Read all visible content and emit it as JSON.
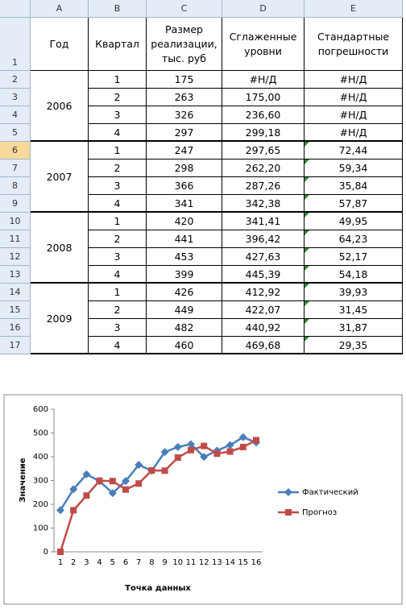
{
  "sheet": {
    "columns": [
      "A",
      "B",
      "C",
      "D",
      "E"
    ],
    "row_numbers": [
      1,
      2,
      3,
      4,
      5,
      6,
      7,
      8,
      9,
      10,
      11,
      12,
      13,
      14,
      15,
      16,
      17
    ],
    "header": [
      "Год",
      "Квартал",
      "Размер реализации, тыс. руб",
      "Сглаженные уровни",
      "Стандартные погрешности"
    ],
    "years": [
      "2006",
      "2007",
      "2008",
      "2009"
    ],
    "rows": [
      [
        "1",
        "175",
        "#Н/Д",
        "#Н/Д"
      ],
      [
        "2",
        "263",
        "175,00",
        "#Н/Д"
      ],
      [
        "3",
        "326",
        "236,60",
        "#Н/Д"
      ],
      [
        "4",
        "297",
        "299,18",
        "#Н/Д"
      ],
      [
        "1",
        "247",
        "297,65",
        "72,44"
      ],
      [
        "2",
        "298",
        "262,20",
        "59,34"
      ],
      [
        "3",
        "366",
        "287,26",
        "35,84"
      ],
      [
        "4",
        "341",
        "342,38",
        "57,87"
      ],
      [
        "1",
        "420",
        "341,41",
        "49,95"
      ],
      [
        "2",
        "441",
        "396,42",
        "64,23"
      ],
      [
        "3",
        "453",
        "427,63",
        "52,17"
      ],
      [
        "4",
        "399",
        "445,39",
        "54,18"
      ],
      [
        "1",
        "426",
        "412,92",
        "39,93"
      ],
      [
        "2",
        "449",
        "422,07",
        "31,45"
      ],
      [
        "3",
        "482",
        "440,92",
        "31,87"
      ],
      [
        "4",
        "460",
        "469,68",
        "29,35"
      ]
    ]
  },
  "chart_data": {
    "type": "line",
    "x_label": "Точка данных",
    "y_label": "Значение",
    "categories": [
      1,
      2,
      3,
      4,
      5,
      6,
      7,
      8,
      9,
      10,
      11,
      12,
      13,
      14,
      15,
      16
    ],
    "series": [
      {
        "name": "Фактический",
        "color": "#4a7ebb",
        "marker": "diamond",
        "values": [
          175,
          263,
          326,
          297,
          247,
          298,
          366,
          341,
          420,
          441,
          453,
          399,
          426,
          449,
          482,
          460
        ]
      },
      {
        "name": "Прогноз",
        "color": "#be4b48",
        "marker": "square",
        "values": [
          0,
          175,
          236.6,
          299.18,
          297.65,
          262.2,
          287.26,
          342.38,
          341.41,
          396.42,
          427.63,
          445.39,
          412.92,
          422.07,
          440.92,
          469.68
        ]
      }
    ],
    "ylim": [
      0,
      600
    ],
    "yticks": [
      0,
      100,
      200,
      300,
      400,
      500,
      600
    ],
    "legend": "right"
  }
}
